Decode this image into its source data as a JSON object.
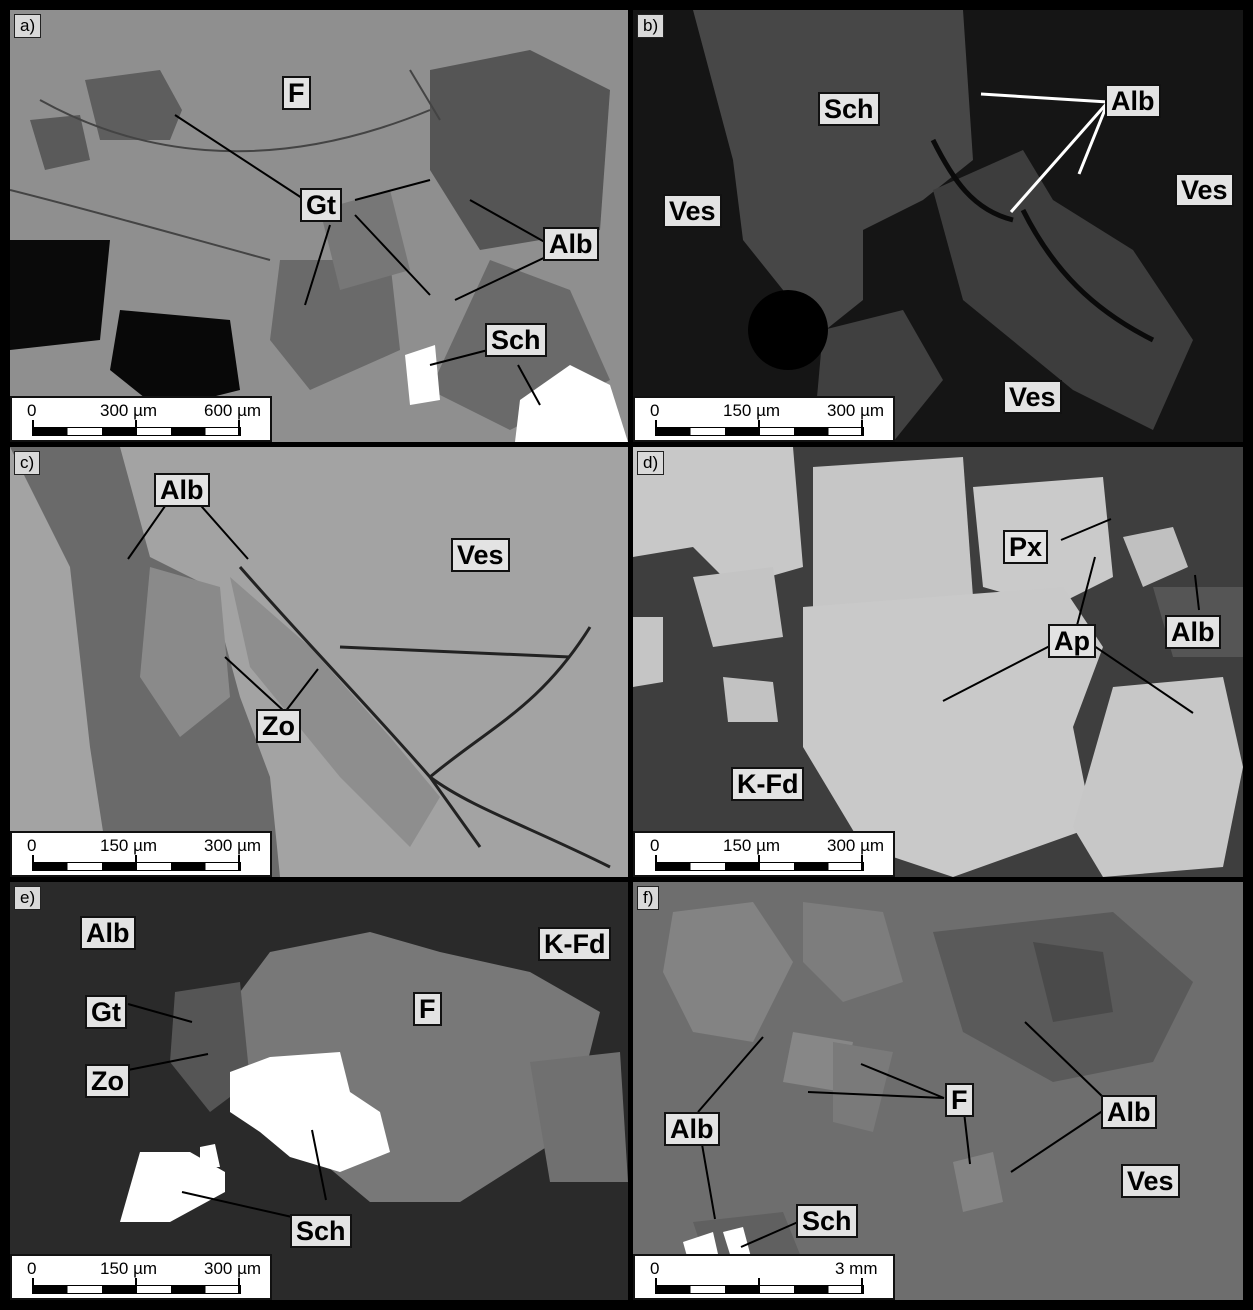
{
  "panels": [
    {
      "id": "a",
      "label": "a)",
      "labels": [
        "F",
        "Gt",
        "Alb",
        "Sch"
      ],
      "scale": [
        "0",
        "300 µm",
        "600 µm"
      ],
      "colors": {
        "matrix": "#8f8f8f",
        "dark": "#505050",
        "void": "#080808",
        "bright": "#ffffff"
      }
    },
    {
      "id": "b",
      "label": "b)",
      "labels": [
        "Sch",
        "Alb",
        "Ves",
        "Ves",
        "Ves"
      ],
      "scale": [
        "0",
        "150 µm",
        "300 µm"
      ],
      "colors": {
        "matrix": "#444444",
        "dark": "#151515"
      }
    },
    {
      "id": "c",
      "label": "c)",
      "labels": [
        "Alb",
        "Ves",
        "Zo"
      ],
      "scale": [
        "0",
        "150 µm",
        "300 µm"
      ],
      "colors": {
        "matrix": "#a3a3a3",
        "dark": "#666666"
      }
    },
    {
      "id": "d",
      "label": "d)",
      "labels": [
        "Px",
        "Alb",
        "Ap",
        "K-Fd"
      ],
      "scale": [
        "0",
        "150 µm",
        "300 µm"
      ],
      "colors": {
        "matrix": "#3e3e3e",
        "light": "#c8c8c8"
      }
    },
    {
      "id": "e",
      "label": "e)",
      "labels": [
        "Alb",
        "K-Fd",
        "Gt",
        "F",
        "Zo",
        "Sch"
      ],
      "scale": [
        "0",
        "150 µm",
        "300 µm"
      ],
      "colors": {
        "matrix": "#2a2a2a",
        "mid": "#777777",
        "bright": "#ffffff"
      }
    },
    {
      "id": "f",
      "label": "f)",
      "labels": [
        "Alb",
        "F",
        "Alb",
        "Ves",
        "Sch"
      ],
      "scale": [
        "0",
        "",
        "3 mm"
      ],
      "colors": {
        "matrix": "#6e6e6e",
        "dark": "#4c4c4c"
      }
    }
  ]
}
